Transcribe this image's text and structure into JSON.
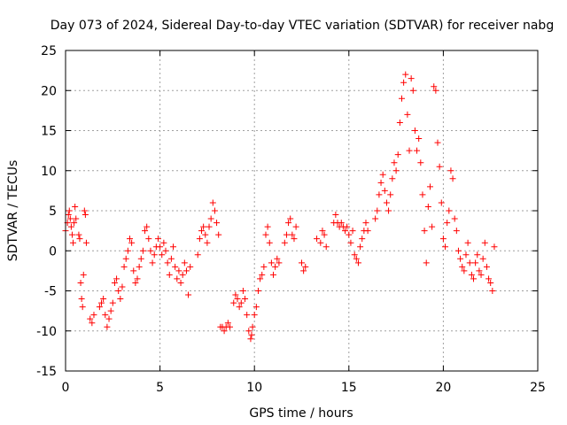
{
  "chart_data": {
    "type": "scatter",
    "title": "Day 073 of 2024, Sidereal Day-to-day VTEC variation (SDTVAR) for receiver nabg",
    "xlabel": "GPS time / hours",
    "ylabel": "SDTVAR / TECUs",
    "xlim": [
      0,
      25
    ],
    "ylim": [
      -15,
      25
    ],
    "xticks": [
      0,
      5,
      10,
      15,
      20,
      25
    ],
    "yticks": [
      -15,
      -10,
      -5,
      0,
      5,
      10,
      15,
      20,
      25
    ],
    "grid": true,
    "marker": "+",
    "color": "#ff0000",
    "series": [
      {
        "name": "SDTVAR",
        "points": [
          [
            0.0,
            2.5
          ],
          [
            0.1,
            3.5
          ],
          [
            0.15,
            4.5
          ],
          [
            0.2,
            5.0
          ],
          [
            0.25,
            4.0
          ],
          [
            0.3,
            3.0
          ],
          [
            0.35,
            2.0
          ],
          [
            0.4,
            1.0
          ],
          [
            0.45,
            3.5
          ],
          [
            0.5,
            5.5
          ],
          [
            0.55,
            4.0
          ],
          [
            0.7,
            2.0
          ],
          [
            0.75,
            1.5
          ],
          [
            0.8,
            -4.0
          ],
          [
            0.85,
            -6.0
          ],
          [
            0.9,
            -7.0
          ],
          [
            0.95,
            -3.0
          ],
          [
            1.0,
            5.0
          ],
          [
            1.05,
            4.5
          ],
          [
            1.1,
            1.0
          ],
          [
            1.3,
            -8.5
          ],
          [
            1.4,
            -9.0
          ],
          [
            1.5,
            -8.0
          ],
          [
            1.8,
            -7.0
          ],
          [
            1.9,
            -6.5
          ],
          [
            2.0,
            -6.0
          ],
          [
            2.1,
            -8.0
          ],
          [
            2.2,
            -9.5
          ],
          [
            2.3,
            -8.5
          ],
          [
            2.4,
            -7.5
          ],
          [
            2.5,
            -6.5
          ],
          [
            2.6,
            -4.0
          ],
          [
            2.7,
            -3.5
          ],
          [
            2.8,
            -5.0
          ],
          [
            2.9,
            -6.0
          ],
          [
            3.0,
            -4.5
          ],
          [
            3.1,
            -2.0
          ],
          [
            3.2,
            -1.0
          ],
          [
            3.3,
            0.0
          ],
          [
            3.4,
            1.5
          ],
          [
            3.5,
            1.0
          ],
          [
            3.6,
            -2.5
          ],
          [
            3.7,
            -4.0
          ],
          [
            3.8,
            -3.5
          ],
          [
            3.9,
            -2.0
          ],
          [
            4.0,
            -1.0
          ],
          [
            4.1,
            0.0
          ],
          [
            4.2,
            2.5
          ],
          [
            4.3,
            3.0
          ],
          [
            4.4,
            1.5
          ],
          [
            4.5,
            0.0
          ],
          [
            4.6,
            -1.5
          ],
          [
            4.7,
            -0.5
          ],
          [
            4.8,
            0.5
          ],
          [
            4.9,
            1.5
          ],
          [
            5.0,
            0.5
          ],
          [
            5.1,
            -0.5
          ],
          [
            5.2,
            1.0
          ],
          [
            5.3,
            0.0
          ],
          [
            5.4,
            -1.5
          ],
          [
            5.5,
            -3.0
          ],
          [
            5.6,
            -1.0
          ],
          [
            5.7,
            0.5
          ],
          [
            5.8,
            -2.0
          ],
          [
            5.9,
            -3.5
          ],
          [
            6.0,
            -2.5
          ],
          [
            6.1,
            -4.0
          ],
          [
            6.2,
            -3.0
          ],
          [
            6.3,
            -1.5
          ],
          [
            6.4,
            -2.5
          ],
          [
            6.5,
            -5.5
          ],
          [
            6.6,
            -2.0
          ],
          [
            7.0,
            -0.5
          ],
          [
            7.1,
            1.5
          ],
          [
            7.2,
            2.5
          ],
          [
            7.3,
            3.0
          ],
          [
            7.4,
            2.0
          ],
          [
            7.5,
            1.0
          ],
          [
            7.6,
            3.0
          ],
          [
            7.7,
            4.0
          ],
          [
            7.8,
            6.0
          ],
          [
            7.9,
            5.0
          ],
          [
            8.0,
            3.5
          ],
          [
            8.1,
            2.0
          ],
          [
            8.2,
            -9.5
          ],
          [
            8.3,
            -9.5
          ],
          [
            8.4,
            -10.0
          ],
          [
            8.5,
            -9.5
          ],
          [
            8.6,
            -9.0
          ],
          [
            8.7,
            -9.5
          ],
          [
            8.9,
            -6.5
          ],
          [
            9.0,
            -5.5
          ],
          [
            9.1,
            -6.0
          ],
          [
            9.2,
            -7.0
          ],
          [
            9.3,
            -6.5
          ],
          [
            9.4,
            -5.0
          ],
          [
            9.5,
            -6.0
          ],
          [
            9.6,
            -8.0
          ],
          [
            9.7,
            -10.0
          ],
          [
            9.8,
            -11.0
          ],
          [
            9.85,
            -10.5
          ],
          [
            9.9,
            -9.5
          ],
          [
            10.0,
            -8.0
          ],
          [
            10.1,
            -7.0
          ],
          [
            10.2,
            -5.0
          ],
          [
            10.3,
            -3.5
          ],
          [
            10.4,
            -3.0
          ],
          [
            10.5,
            -2.0
          ],
          [
            10.6,
            2.0
          ],
          [
            10.7,
            3.0
          ],
          [
            10.8,
            1.0
          ],
          [
            10.9,
            -1.5
          ],
          [
            11.0,
            -3.0
          ],
          [
            11.1,
            -2.0
          ],
          [
            11.2,
            -1.0
          ],
          [
            11.3,
            -1.5
          ],
          [
            11.6,
            1.0
          ],
          [
            11.7,
            2.0
          ],
          [
            11.8,
            3.5
          ],
          [
            11.9,
            4.0
          ],
          [
            12.0,
            2.0
          ],
          [
            12.1,
            1.5
          ],
          [
            12.2,
            3.0
          ],
          [
            12.5,
            -1.5
          ],
          [
            12.6,
            -2.5
          ],
          [
            12.7,
            -2.0
          ],
          [
            13.3,
            1.5
          ],
          [
            13.5,
            1.0
          ],
          [
            13.6,
            2.5
          ],
          [
            13.7,
            2.0
          ],
          [
            13.8,
            0.5
          ],
          [
            14.2,
            3.5
          ],
          [
            14.3,
            4.5
          ],
          [
            14.4,
            3.5
          ],
          [
            14.5,
            3.0
          ],
          [
            14.6,
            3.5
          ],
          [
            14.7,
            3.0
          ],
          [
            14.8,
            2.5
          ],
          [
            14.9,
            3.0
          ],
          [
            15.0,
            2.0
          ],
          [
            15.1,
            1.0
          ],
          [
            15.2,
            2.5
          ],
          [
            15.3,
            -0.5
          ],
          [
            15.4,
            -1.0
          ],
          [
            15.5,
            -1.5
          ],
          [
            15.6,
            0.5
          ],
          [
            15.7,
            1.5
          ],
          [
            15.8,
            2.5
          ],
          [
            15.9,
            3.5
          ],
          [
            16.0,
            2.5
          ],
          [
            16.4,
            4.0
          ],
          [
            16.5,
            5.0
          ],
          [
            16.6,
            7.0
          ],
          [
            16.7,
            8.5
          ],
          [
            16.8,
            9.5
          ],
          [
            16.9,
            7.5
          ],
          [
            17.0,
            6.0
          ],
          [
            17.1,
            5.0
          ],
          [
            17.2,
            7.0
          ],
          [
            17.3,
            9.0
          ],
          [
            17.4,
            11.0
          ],
          [
            17.5,
            10.0
          ],
          [
            17.6,
            12.0
          ],
          [
            17.7,
            16.0
          ],
          [
            17.8,
            19.0
          ],
          [
            17.9,
            21.0
          ],
          [
            18.0,
            22.0
          ],
          [
            18.1,
            17.0
          ],
          [
            18.2,
            12.5
          ],
          [
            18.3,
            21.5
          ],
          [
            18.4,
            20.0
          ],
          [
            18.5,
            15.0
          ],
          [
            18.6,
            12.5
          ],
          [
            18.7,
            14.0
          ],
          [
            18.8,
            11.0
          ],
          [
            18.9,
            7.0
          ],
          [
            19.0,
            2.5
          ],
          [
            19.1,
            -1.5
          ],
          [
            19.2,
            5.5
          ],
          [
            19.3,
            8.0
          ],
          [
            19.4,
            3.0
          ],
          [
            19.5,
            20.5
          ],
          [
            19.6,
            20.0
          ],
          [
            19.7,
            13.5
          ],
          [
            19.8,
            10.5
          ],
          [
            19.9,
            6.0
          ],
          [
            20.0,
            1.5
          ],
          [
            20.1,
            0.5
          ],
          [
            20.2,
            3.5
          ],
          [
            20.3,
            5.0
          ],
          [
            20.4,
            10.0
          ],
          [
            20.5,
            9.0
          ],
          [
            20.6,
            4.0
          ],
          [
            20.7,
            2.5
          ],
          [
            20.8,
            0.0
          ],
          [
            20.9,
            -1.0
          ],
          [
            21.0,
            -2.0
          ],
          [
            21.1,
            -2.5
          ],
          [
            21.2,
            -0.5
          ],
          [
            21.3,
            1.0
          ],
          [
            21.4,
            -1.5
          ],
          [
            21.5,
            -3.0
          ],
          [
            21.6,
            -3.5
          ],
          [
            21.7,
            -1.5
          ],
          [
            21.8,
            -0.5
          ],
          [
            21.9,
            -2.5
          ],
          [
            22.0,
            -3.0
          ],
          [
            22.1,
            -1.0
          ],
          [
            22.2,
            1.0
          ],
          [
            22.3,
            -2.0
          ],
          [
            22.4,
            -3.5
          ],
          [
            22.5,
            -4.0
          ],
          [
            22.6,
            -5.0
          ],
          [
            22.7,
            0.5
          ]
        ]
      }
    ]
  }
}
